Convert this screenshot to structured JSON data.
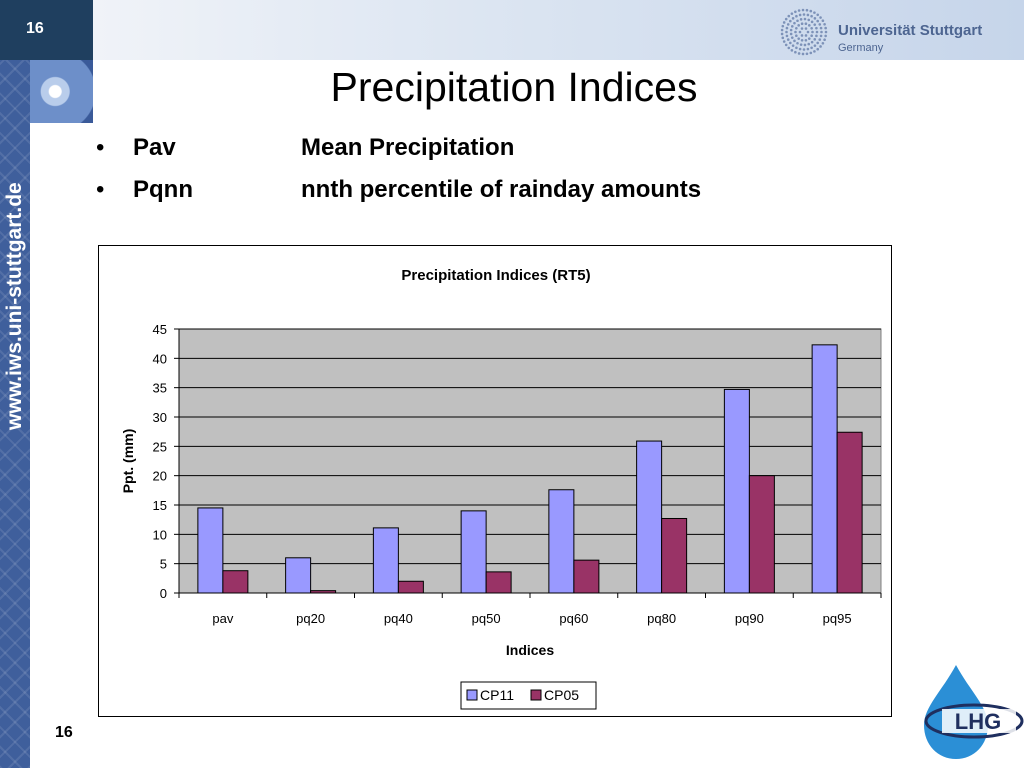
{
  "slide": {
    "number_top": "16",
    "number_bottom": "16",
    "title": "Precipitation Indices",
    "side_url": "www.iws.uni-stuttgart.de",
    "university": "Universität Stuttgart",
    "country": "Germany",
    "partner_logo_text": "LHG"
  },
  "bullets": [
    {
      "symbol": "•",
      "term": "Pav",
      "description": "Mean Precipitation"
    },
    {
      "symbol": "•",
      "term": "Pqnn",
      "description": "nnth percentile of rainday amounts"
    }
  ],
  "chart_data": {
    "type": "bar",
    "title": "Precipitation Indices (RT5)",
    "xlabel": "Indices",
    "ylabel": "Ppt. (mm)",
    "ylim": [
      0,
      45
    ],
    "yticks": [
      "0",
      "5",
      "10",
      "15",
      "20",
      "25",
      "30",
      "35",
      "40",
      "45"
    ],
    "categories": [
      "pav",
      "pq20",
      "pq40",
      "pq50",
      "pq60",
      "pq80",
      "pq90",
      "pq95"
    ],
    "series": [
      {
        "name": "CP11",
        "color": "#9999ff",
        "values": [
          14.5,
          6.0,
          11.1,
          14.0,
          17.6,
          25.9,
          34.7,
          42.3
        ]
      },
      {
        "name": "CP05",
        "color": "#993366",
        "values": [
          3.8,
          0.4,
          2.0,
          3.6,
          5.6,
          12.7,
          20.0,
          27.4
        ]
      }
    ],
    "grid": true,
    "plot_background": "#c0c0c0",
    "legend_position": "bottom"
  }
}
